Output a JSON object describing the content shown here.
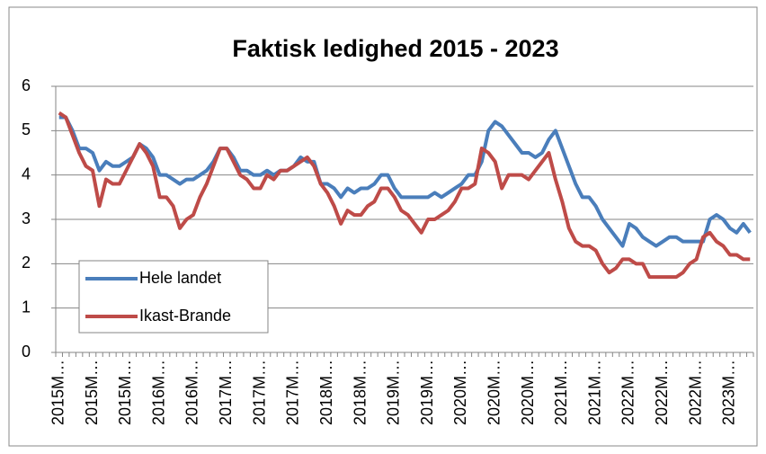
{
  "chart_data": {
    "type": "line",
    "title": "Faktisk ledighed 2015 - 2023",
    "categories": [
      "2015M…",
      null,
      null,
      null,
      null,
      "2015M…",
      null,
      null,
      null,
      null,
      "2015M…",
      null,
      null,
      null,
      null,
      "2016M…",
      null,
      null,
      null,
      null,
      "2016M…",
      null,
      null,
      null,
      null,
      "2017M…",
      null,
      null,
      null,
      null,
      "2017M…",
      null,
      null,
      null,
      null,
      "2017M…",
      null,
      null,
      null,
      null,
      "2018M…",
      null,
      null,
      null,
      null,
      "2018M…",
      null,
      null,
      null,
      null,
      "2019M…",
      null,
      null,
      null,
      null,
      "2019M…",
      null,
      null,
      null,
      null,
      "2020M…",
      null,
      null,
      null,
      null,
      "2020M…",
      null,
      null,
      null,
      null,
      "2020M…",
      null,
      null,
      null,
      null,
      "2021M…",
      null,
      null,
      null,
      null,
      "2021M…",
      null,
      null,
      null,
      null,
      "2022M…",
      null,
      null,
      null,
      null,
      "2022M…",
      null,
      null,
      null,
      null,
      "2022M…",
      null,
      null,
      null,
      null,
      "2023M…",
      null,
      null,
      null
    ],
    "series": [
      {
        "name": "Hele landet",
        "color": "#4a7ebb",
        "values": [
          5.3,
          5.3,
          5.0,
          4.6,
          4.6,
          4.5,
          4.1,
          4.3,
          4.2,
          4.2,
          4.3,
          4.4,
          4.7,
          4.6,
          4.4,
          4.0,
          4.0,
          3.9,
          3.8,
          3.9,
          3.9,
          4.0,
          4.1,
          4.3,
          4.6,
          4.6,
          4.4,
          4.1,
          4.1,
          4.0,
          4.0,
          4.1,
          4.0,
          4.1,
          4.1,
          4.2,
          4.4,
          4.3,
          4.3,
          3.8,
          3.8,
          3.7,
          3.5,
          3.7,
          3.6,
          3.7,
          3.7,
          3.8,
          4.0,
          4.0,
          3.7,
          3.5,
          3.5,
          3.5,
          3.5,
          3.5,
          3.6,
          3.5,
          3.6,
          3.7,
          3.8,
          4.0,
          4.0,
          4.3,
          5.0,
          5.2,
          5.1,
          4.9,
          4.7,
          4.5,
          4.5,
          4.4,
          4.5,
          4.8,
          5.0,
          4.6,
          4.2,
          3.8,
          3.5,
          3.5,
          3.3,
          3.0,
          2.8,
          2.6,
          2.4,
          2.9,
          2.8,
          2.6,
          2.5,
          2.4,
          2.5,
          2.6,
          2.6,
          2.5,
          2.5,
          2.5,
          2.5,
          3.0,
          3.1,
          3.0,
          2.8,
          2.7,
          2.9,
          2.7
        ]
      },
      {
        "name": "Ikast-Brande",
        "color": "#be4b48",
        "values": [
          5.4,
          5.3,
          4.9,
          4.5,
          4.2,
          4.1,
          3.3,
          3.9,
          3.8,
          3.8,
          4.1,
          4.4,
          4.7,
          4.5,
          4.2,
          3.5,
          3.5,
          3.3,
          2.8,
          3.0,
          3.1,
          3.5,
          3.8,
          4.2,
          4.6,
          4.6,
          4.3,
          4.0,
          3.9,
          3.7,
          3.7,
          4.0,
          3.9,
          4.1,
          4.1,
          4.2,
          4.3,
          4.4,
          4.2,
          3.8,
          3.6,
          3.3,
          2.9,
          3.2,
          3.1,
          3.1,
          3.3,
          3.4,
          3.7,
          3.7,
          3.5,
          3.2,
          3.1,
          2.9,
          2.7,
          3.0,
          3.0,
          3.1,
          3.2,
          3.4,
          3.7,
          3.7,
          3.8,
          4.6,
          4.5,
          4.3,
          3.7,
          4.0,
          4.0,
          4.0,
          3.9,
          4.1,
          4.3,
          4.5,
          3.9,
          3.4,
          2.8,
          2.5,
          2.4,
          2.4,
          2.3,
          2.0,
          1.8,
          1.9,
          2.1,
          2.1,
          2.0,
          2.0,
          1.7,
          1.7,
          1.7,
          1.7,
          1.7,
          1.8,
          2.0,
          2.1,
          2.6,
          2.7,
          2.5,
          2.4,
          2.2,
          2.2,
          2.1,
          2.1
        ]
      }
    ],
    "ylim": [
      0,
      6
    ],
    "yticks": [
      0,
      1,
      2,
      3,
      4,
      5,
      6
    ],
    "grid": true
  }
}
